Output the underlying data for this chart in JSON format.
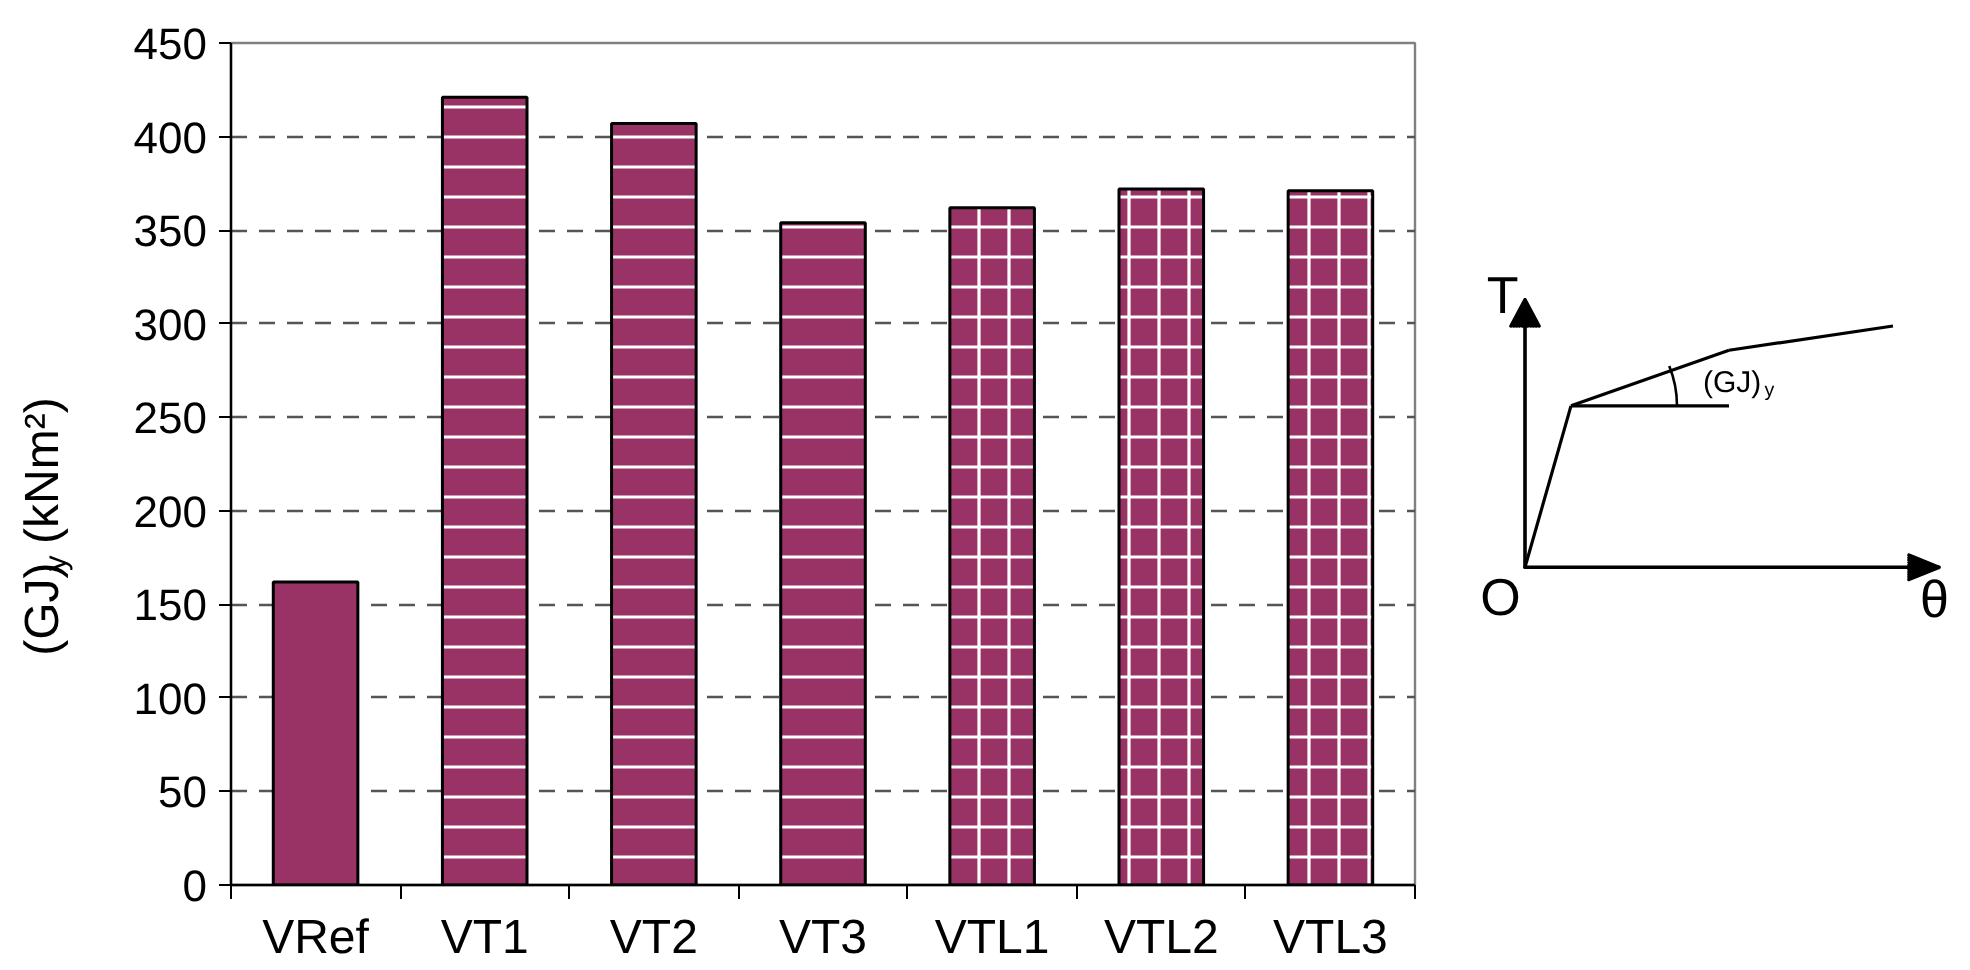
{
  "chart_data": [
    {
      "type": "bar",
      "categories": [
        "VRef",
        "VT1",
        "VT2",
        "VT3",
        "VTL1",
        "VTL2",
        "VTL3"
      ],
      "values": [
        162,
        421,
        407,
        354,
        362,
        372,
        371
      ],
      "color": "#993366",
      "ylabel": "(GJ)$_{y}$ (kNm²)",
      "ylim": [
        0,
        450
      ],
      "yticks": [
        0,
        50,
        100,
        150,
        200,
        250,
        300,
        350,
        400,
        450
      ],
      "grid": "y"
    },
    {
      "type": "other",
      "xlabel": "θ",
      "ylabel": "T",
      "annotations": [
        "O",
        "(GJ)$_{y}$"
      ]
    }
  ]
}
